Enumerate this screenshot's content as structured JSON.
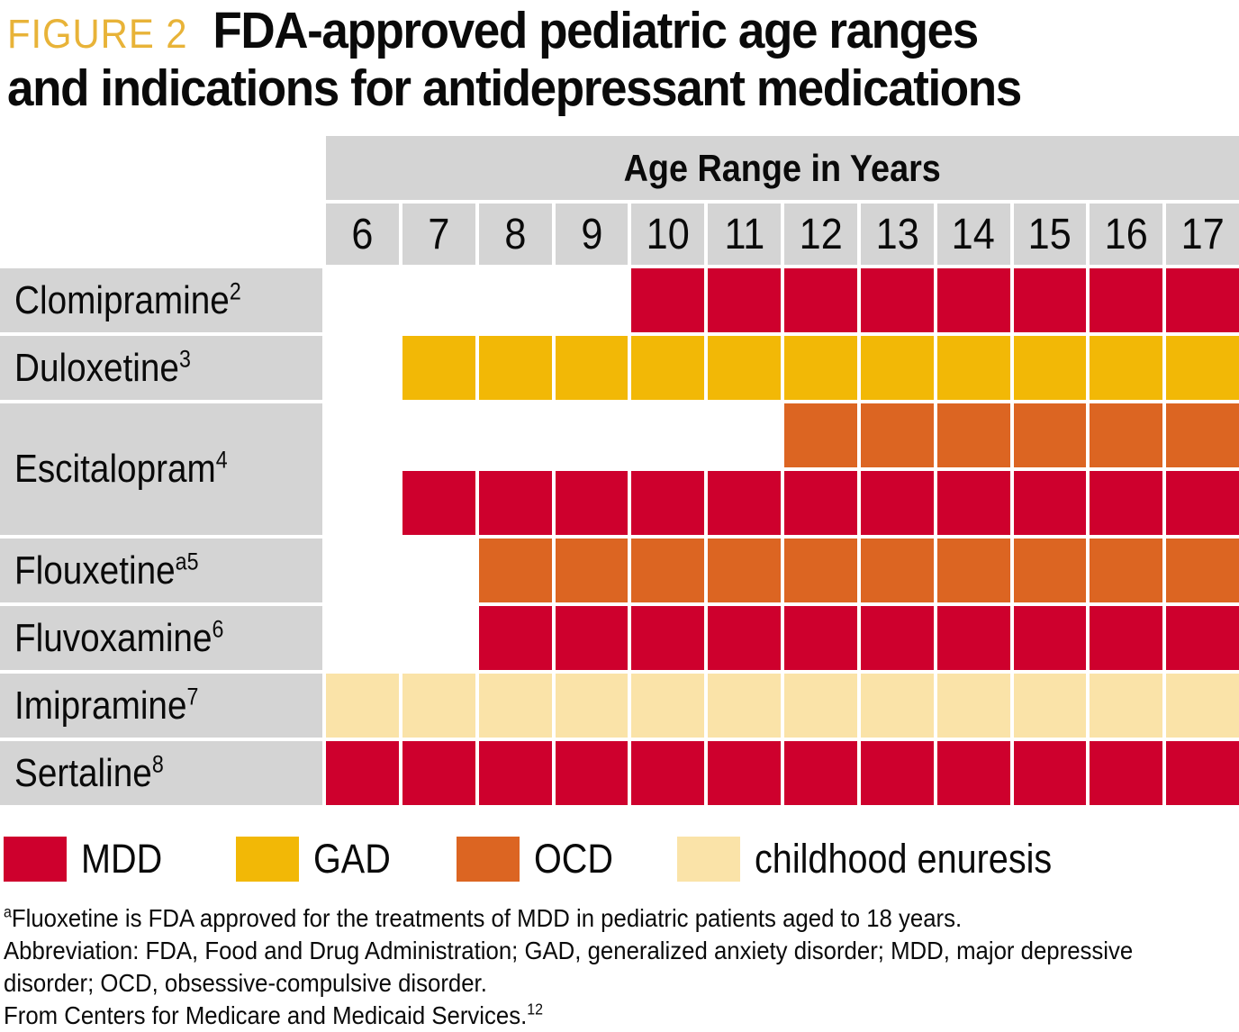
{
  "header": {
    "figure_label": "FIGURE 2",
    "figure_label_color": "#E8B338",
    "title_line1": "FDA-approved pediatric age ranges",
    "title_line2": "and indications for antidepressant medications"
  },
  "table": {
    "age_header": "Age Range in Years"
  },
  "footnotes": {
    "fluoxetine_sup": "a",
    "fluoxetine_text": "Fluoxetine is FDA approved for the treatments of MDD in pediatric patients aged to 18 years.",
    "abbreviation_line1": "Abbreviation: FDA, Food and Drug Administration; GAD, generalized anxiety disorder; MDD, major depressive",
    "abbreviation_line2": "disorder; OCD, obsessive-compulsive disorder.",
    "source_text": "From Centers for Medicare and Medicaid Services.",
    "source_sup": "12"
  },
  "chart_data": {
    "type": "heatmap",
    "title": "FDA-approved pediatric age ranges and indications for antidepressant medications",
    "x_axis_label": "Age Range in Years",
    "x_categories": [
      6,
      7,
      8,
      9,
      10,
      11,
      12,
      13,
      14,
      15,
      16,
      17
    ],
    "colors": {
      "MDD": "#CE002D",
      "GAD": "#F2B806",
      "OCD": "#DC6522",
      "childhood enuresis": "#FAE3A8"
    },
    "legend_order": [
      "MDD",
      "GAD",
      "OCD",
      "childhood enuresis"
    ],
    "legend_position": "bottom",
    "grid_gap_color": "#FFFFFF",
    "header_bg": "#D4D4D4",
    "rows": [
      {
        "drug": "Clomipramine",
        "superscript": "2",
        "bands": [
          {
            "indication": "MDD",
            "age_start": 10,
            "age_end": 17
          }
        ]
      },
      {
        "drug": "Duloxetine",
        "superscript": "3",
        "bands": [
          {
            "indication": "GAD",
            "age_start": 7,
            "age_end": 17
          }
        ]
      },
      {
        "drug": "Escitalopram",
        "superscript": "4",
        "bands": [
          {
            "indication": "OCD",
            "age_start": 12,
            "age_end": 17
          },
          {
            "indication": "MDD",
            "age_start": 7,
            "age_end": 17
          }
        ]
      },
      {
        "drug": "Flouxetine",
        "superscript": "a5",
        "bands": [
          {
            "indication": "OCD",
            "age_start": 8,
            "age_end": 17
          }
        ]
      },
      {
        "drug": "Fluvoxamine",
        "superscript": "6",
        "bands": [
          {
            "indication": "MDD",
            "age_start": 8,
            "age_end": 17
          }
        ]
      },
      {
        "drug": "Imipramine",
        "superscript": "7",
        "bands": [
          {
            "indication": "childhood enuresis",
            "age_start": 6,
            "age_end": 17
          }
        ]
      },
      {
        "drug": "Sertaline",
        "superscript": "8",
        "bands": [
          {
            "indication": "MDD",
            "age_start": 6,
            "age_end": 17
          }
        ]
      }
    ]
  }
}
